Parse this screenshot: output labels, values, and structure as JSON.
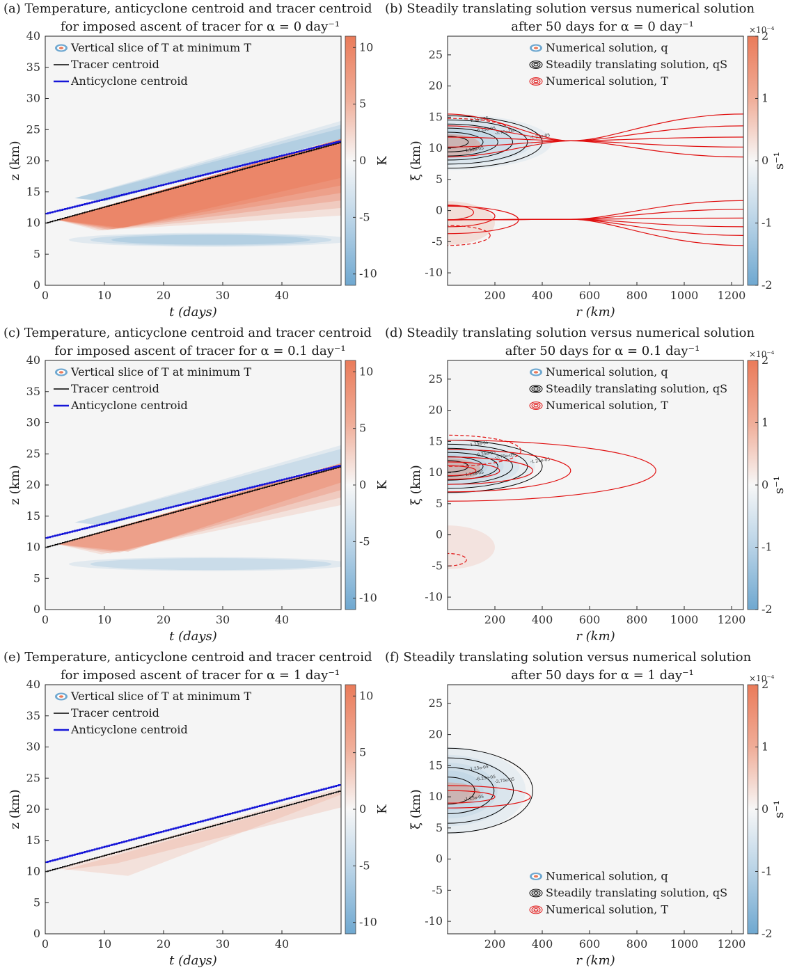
{
  "chart_data": [
    {
      "panel": "a",
      "type": "heatmap",
      "title_line1": "(a) Temperature, anticyclone centroid and tracer centroid",
      "title_line2": "for imposed ascent of tracer for α = 0 day⁻¹",
      "xlabel": "t (days)",
      "ylabel": "z (km)",
      "xlim": [
        0,
        50
      ],
      "ylim": [
        0,
        40
      ],
      "xticks": [
        "0",
        "10",
        "20",
        "30",
        "40"
      ],
      "yticks": [
        "0",
        "5",
        "10",
        "15",
        "20",
        "25",
        "30",
        "35",
        "40"
      ],
      "colorbar": {
        "label": "K",
        "lim": [
          -11,
          11
        ],
        "ticks": [
          "-10",
          "-5",
          "0",
          "5",
          "10"
        ]
      },
      "legend": [
        "Vertical slice of T at minimum T",
        "Tracer centroid",
        "Anticyclone centroid"
      ],
      "tracer_centroid": {
        "x": [
          0,
          50
        ],
        "y": [
          10,
          23
        ]
      },
      "anticyclone_centroid": {
        "x": [
          0,
          50
        ],
        "y": [
          11.5,
          23.2
        ]
      },
      "field_peak_K": {
        "warm": 7,
        "cold": -3
      }
    },
    {
      "panel": "b",
      "type": "heatmap",
      "title_line1": "(b) Steadily translating solution versus numerical solution",
      "title_line2": "after 50 days for α = 0 day⁻¹",
      "xlabel": "r (km)",
      "ylabel": "ξ (km)",
      "xlim": [
        0,
        1250
      ],
      "ylim": [
        -12,
        28
      ],
      "xticks": [
        "200",
        "400",
        "600",
        "800",
        "1000",
        "1200"
      ],
      "yticks": [
        "-10",
        "-5",
        "0",
        "5",
        "10",
        "15",
        "20",
        "25"
      ],
      "colorbar": {
        "label": "s⁻¹",
        "exponent": "×10⁻⁴",
        "lim": [
          -2,
          2
        ],
        "ticks": [
          "-2",
          "-1",
          "0",
          "1",
          "2"
        ]
      },
      "legend": [
        "Numerical solution, q",
        "Steadily translating solution, qS",
        "Numerical solution, T"
      ],
      "contour_labels": [
        "-1.25e-05",
        "-6.25e-05",
        "-3.75e-05",
        "-1.25e-05",
        "-1.25e-05"
      ]
    },
    {
      "panel": "c",
      "type": "heatmap",
      "title_line1": "(c) Temperature, anticyclone centroid and tracer centroid",
      "title_line2": "for imposed ascent of tracer for α = 0.1 day⁻¹",
      "xlabel": "t (days)",
      "ylabel": "z (km)",
      "xlim": [
        0,
        50
      ],
      "ylim": [
        0,
        40
      ],
      "xticks": [
        "0",
        "10",
        "20",
        "30",
        "40"
      ],
      "yticks": [
        "0",
        "5",
        "10",
        "15",
        "20",
        "25",
        "30",
        "35",
        "40"
      ],
      "colorbar": {
        "label": "K",
        "lim": [
          -11,
          11
        ],
        "ticks": [
          "-10",
          "-5",
          "0",
          "5",
          "10"
        ]
      },
      "legend": [
        "Vertical slice of T at minimum T",
        "Tracer centroid",
        "Anticyclone centroid"
      ],
      "tracer_centroid": {
        "x": [
          0,
          50
        ],
        "y": [
          10,
          23
        ]
      },
      "anticyclone_centroid": {
        "x": [
          0,
          50
        ],
        "y": [
          11.5,
          23.2
        ]
      },
      "field_peak_K": {
        "warm": 4,
        "cold": -2
      }
    },
    {
      "panel": "d",
      "type": "heatmap",
      "title_line1": "(d) Steadily translating solution versus numerical solution",
      "title_line2": "after 50 days for α = 0.1 day⁻¹",
      "xlabel": "r (km)",
      "ylabel": "ξ (km)",
      "xlim": [
        0,
        1250
      ],
      "ylim": [
        -12,
        28
      ],
      "xticks": [
        "200",
        "400",
        "600",
        "800",
        "1000",
        "1200"
      ],
      "yticks": [
        "-10",
        "-5",
        "0",
        "5",
        "10",
        "15",
        "20",
        "25"
      ],
      "colorbar": {
        "label": "s⁻¹",
        "exponent": "×10⁻⁴",
        "lim": [
          -2,
          2
        ],
        "ticks": [
          "-2",
          "-1",
          "0",
          "1",
          "2"
        ]
      },
      "legend": [
        "Numerical solution, q",
        "Steadily translating solution, qS",
        "Numerical solution, T"
      ],
      "contour_labels": [
        "-1.25e-05",
        "-6.25e-05",
        "-3.75e-05",
        "-1.25e-05",
        "-1.25e-05"
      ]
    },
    {
      "panel": "e",
      "type": "heatmap",
      "title_line1": "(e) Temperature, anticyclone centroid and tracer centroid",
      "title_line2": "for imposed ascent of tracer for α = 1 day⁻¹",
      "xlabel": "t (days)",
      "ylabel": "z (km)",
      "xlim": [
        0,
        50
      ],
      "ylim": [
        0,
        40
      ],
      "xticks": [
        "0",
        "10",
        "20",
        "30",
        "40"
      ],
      "yticks": [
        "0",
        "5",
        "10",
        "15",
        "20",
        "25",
        "30",
        "35",
        "40"
      ],
      "colorbar": {
        "label": "K",
        "lim": [
          -11,
          11
        ],
        "ticks": [
          "-10",
          "-5",
          "0",
          "5",
          "10"
        ]
      },
      "legend": [
        "Vertical slice of T at minimum T",
        "Tracer centroid",
        "Anticyclone centroid"
      ],
      "tracer_centroid": {
        "x": [
          0,
          50
        ],
        "y": [
          10,
          23
        ]
      },
      "anticyclone_centroid": {
        "x": [
          0,
          50
        ],
        "y": [
          11.5,
          24
        ]
      },
      "field_peak_K": {
        "warm": 1,
        "cold": 0
      }
    },
    {
      "panel": "f",
      "type": "heatmap",
      "title_line1": "(f) Steadily translating solution versus numerical solution",
      "title_line2": "after 50 days for α = 1 day⁻¹",
      "xlabel": "r (km)",
      "ylabel": "ξ (km)",
      "xlim": [
        0,
        1250
      ],
      "ylim": [
        -12,
        28
      ],
      "xticks": [
        "200",
        "400",
        "600",
        "800",
        "1000",
        "1200"
      ],
      "yticks": [
        "-10",
        "-5",
        "0",
        "5",
        "10",
        "15",
        "20",
        "25"
      ],
      "colorbar": {
        "label": "s⁻¹",
        "exponent": "×10⁻⁴",
        "lim": [
          -2,
          2
        ],
        "ticks": [
          "-2",
          "-1",
          "0",
          "1",
          "2"
        ]
      },
      "legend": [
        "Numerical solution, q",
        "Steadily translating solution, qS",
        "Numerical solution, T"
      ],
      "contour_labels": [
        "-1.25e-05",
        "-6.25e-05",
        "-3.75e-05",
        "-1.25e-05"
      ]
    }
  ],
  "colors": {
    "background": "#f5f5f5",
    "warm": "#ea7b5a",
    "cold": "#6fa8d0",
    "tracer": "#000000",
    "anticyclone": "#1515d8",
    "T_contour": "#e01010",
    "qS_contour": "#000000"
  }
}
